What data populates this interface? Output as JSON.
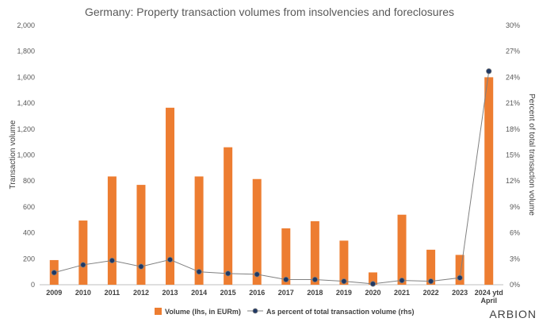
{
  "chart_data": {
    "type": "bar",
    "title": "Germany: Property transaction volumes from insolvencies and foreclosures",
    "ylabel": "Transaction volume",
    "y2label": "Percent of total transaction volume",
    "categories": [
      "2009",
      "2010",
      "2011",
      "2012",
      "2013",
      "2014",
      "2015",
      "2016",
      "2017",
      "2018",
      "2019",
      "2020",
      "2021",
      "2022",
      "2023",
      "2024 ytd April"
    ],
    "ylim": [
      0,
      2000
    ],
    "yticks": [
      "0",
      "200",
      "400",
      "600",
      "800",
      "1,000",
      "1,200",
      "1,400",
      "1,600",
      "1,800",
      "2,000"
    ],
    "y2lim": [
      0,
      30
    ],
    "y2ticks": [
      "0%",
      "3%",
      "6%",
      "9%",
      "12%",
      "15%",
      "18%",
      "21%",
      "24%",
      "27%",
      "30%"
    ],
    "series": [
      {
        "name": "Volume (lhs, in EURm)",
        "type": "bar",
        "axis": "left",
        "color": "#ed7d31",
        "values": [
          190,
          495,
          835,
          770,
          1365,
          835,
          1060,
          815,
          435,
          490,
          340,
          95,
          540,
          270,
          230,
          1600
        ]
      },
      {
        "name": "As percent of total transaction volume (rhs)",
        "type": "line",
        "axis": "right",
        "color": "#808080",
        "marker_color": "#1f3864",
        "values": [
          1.4,
          2.3,
          2.8,
          2.1,
          2.9,
          1.5,
          1.3,
          1.2,
          0.6,
          0.6,
          0.4,
          0.1,
          0.5,
          0.4,
          0.8,
          24.7
        ]
      }
    ],
    "grid": false,
    "legend": "bottom"
  },
  "brand": "ARBION"
}
